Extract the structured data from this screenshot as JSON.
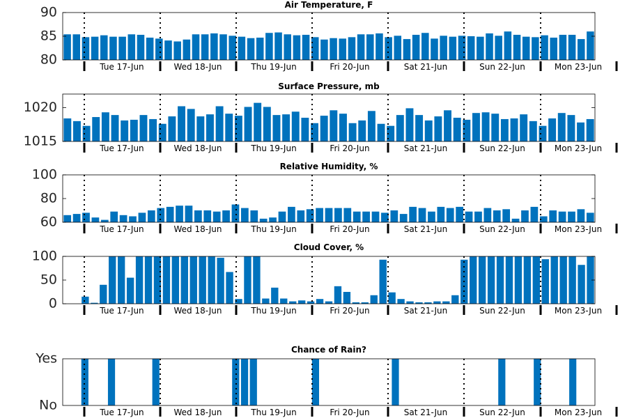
{
  "colors": {
    "bar": "#0072BD",
    "axis": "#000000",
    "text": "#262626"
  },
  "day_labels": [
    "Tue 17-Jun",
    "Wed 18-Jun",
    "Thu 19-Jun",
    "Fri 20-Jun",
    "Sat 21-Jun",
    "Sun 22-Jun",
    "Mon 23-Jun"
  ],
  "chart_data": [
    {
      "type": "bar",
      "title": "Air Temperature, F",
      "ylim": [
        80,
        90
      ],
      "yticks": [
        80,
        85,
        90
      ],
      "xlabel": "",
      "ylabel": "",
      "values": [
        85.4,
        85.4,
        84.8,
        84.9,
        85.2,
        84.9,
        84.9,
        85.4,
        85.3,
        84.7,
        84.5,
        84.1,
        83.9,
        84.3,
        85.4,
        85.4,
        85.6,
        85.4,
        85.1,
        84.9,
        84.6,
        84.7,
        85.7,
        85.8,
        85.4,
        85.2,
        85.3,
        84.8,
        84.3,
        84.6,
        84.5,
        84.8,
        85.4,
        85.4,
        85.6,
        84.8,
        85.1,
        84.4,
        85.3,
        85.7,
        84.5,
        85.1,
        84.9,
        85.1,
        85.0,
        84.9,
        85.6,
        85.1,
        86.0,
        85.3,
        84.9,
        84.8,
        85.2,
        84.7,
        85.3,
        85.3,
        84.4,
        86.0
      ]
    },
    {
      "type": "bar",
      "title": "Surface Pressure, mb",
      "ylim": [
        1015,
        1022
      ],
      "yticks": [
        1015,
        1020
      ],
      "xlabel": "",
      "ylabel": "",
      "values": [
        1018.4,
        1018.0,
        1017.3,
        1018.6,
        1019.3,
        1018.9,
        1018.1,
        1018.2,
        1018.9,
        1018.3,
        1017.6,
        1018.7,
        1020.2,
        1019.8,
        1018.7,
        1019.0,
        1020.2,
        1019.1,
        1018.8,
        1020.1,
        1020.7,
        1020.1,
        1018.9,
        1019.0,
        1019.4,
        1018.5,
        1017.7,
        1018.8,
        1019.6,
        1019.1,
        1017.7,
        1018.1,
        1019.5,
        1017.6,
        1017.3,
        1018.9,
        1019.9,
        1018.9,
        1018.1,
        1018.7,
        1019.6,
        1018.5,
        1018.2,
        1019.2,
        1019.3,
        1019.1,
        1018.3,
        1018.4,
        1019.0,
        1018.0,
        1017.3,
        1018.4,
        1019.2,
        1018.9,
        1017.8,
        1018.3
      ]
    },
    {
      "type": "bar",
      "title": "Relative Humidity, %",
      "ylim": [
        60,
        100
      ],
      "yticks": [
        60,
        80,
        100
      ],
      "xlabel": "",
      "ylabel": "",
      "values": [
        66,
        67,
        68,
        64,
        62,
        69,
        66,
        65,
        68,
        70,
        72,
        73,
        74,
        74,
        70,
        70,
        69,
        70,
        75,
        72,
        70,
        63,
        64,
        69,
        73,
        70,
        71,
        72,
        72,
        72,
        72,
        69,
        69,
        69,
        68,
        70,
        67,
        73,
        72,
        69,
        73,
        72,
        73,
        69,
        69,
        72,
        70,
        71,
        63,
        70,
        73,
        65,
        70,
        69,
        69,
        71,
        68
      ]
    },
    {
      "type": "bar",
      "title": "Cloud Cover, %",
      "ylim": [
        0,
        100
      ],
      "yticks": [
        0,
        50,
        100
      ],
      "xlabel": "",
      "ylabel": "",
      "values": [
        0,
        0,
        15,
        2,
        40,
        100,
        100,
        55,
        100,
        100,
        100,
        100,
        100,
        100,
        100,
        100,
        100,
        97,
        67,
        10,
        100,
        100,
        11,
        34,
        11,
        5,
        7,
        5,
        10,
        5,
        37,
        25,
        3,
        3,
        18,
        93,
        24,
        10,
        5,
        3,
        3,
        5,
        5,
        18,
        93,
        100,
        100,
        100,
        100,
        100,
        100,
        100,
        100,
        94,
        100,
        100,
        100,
        82,
        100
      ]
    },
    {
      "type": "bar",
      "title": "Chance of Rain?",
      "ylim": [
        0,
        1
      ],
      "ytick_labels": [
        "No",
        "Yes"
      ],
      "xlabel": "",
      "ylabel": "",
      "values": [
        0,
        0,
        1,
        0,
        0,
        1,
        0,
        0,
        0,
        0,
        1,
        0,
        0,
        0,
        0,
        0,
        0,
        0,
        0,
        1,
        1,
        1,
        0,
        0,
        0,
        0,
        0,
        0,
        1,
        0,
        0,
        0,
        0,
        0,
        0,
        0,
        0,
        1,
        0,
        0,
        0,
        0,
        0,
        0,
        0,
        0,
        0,
        0,
        0,
        1,
        0,
        0,
        0,
        1,
        0,
        0,
        0,
        1,
        0,
        0
      ]
    }
  ]
}
